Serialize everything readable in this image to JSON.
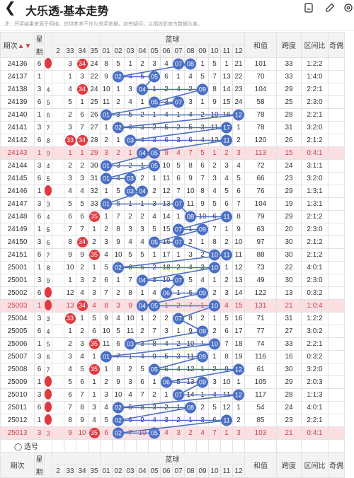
{
  "app": {
    "title": "大乐透-基本走势",
    "notice": "注：开奖结果来源于网络，仅供参考不作为兑奖依据，如有疑问，以福体彩官方数据为准。"
  },
  "header": {
    "period": "期次",
    "star_top": "星",
    "star_bottom": "期",
    "blue_title": "蓝球",
    "red_cols": [
      "2",
      "33",
      "34",
      "35"
    ],
    "blue_nums": [
      "01",
      "02",
      "03",
      "04",
      "05",
      "06",
      "07",
      "08",
      "09",
      "10",
      "11",
      "12"
    ],
    "sum": "和值",
    "span": "跨度",
    "ratio": "区间比",
    "odd": "奇偶"
  },
  "footer": {
    "pick_label": "选号",
    "period": "期次",
    "star_top": "星",
    "star_bottom": "期",
    "blue_title": "蓝球",
    "red_cols": [
      "2",
      "33",
      "34",
      "35"
    ],
    "blue_nums": [
      "01",
      "02",
      "03",
      "04",
      "05",
      "06",
      "07",
      "08",
      "09",
      "10",
      "11",
      "12"
    ],
    "sum": "和值",
    "span": "跨度",
    "ratio": "区间比",
    "odd": "奇偶"
  },
  "colors": {
    "red_ball": "#e0393e",
    "blue_ball": "#4a6fc4",
    "highlight_row": "#fbdfe2"
  },
  "rows": [
    {
      "period": "24136",
      "star": "6",
      "left": "2",
      "reds": [
        "3",
        "34",
        "24"
      ],
      "red_hits": [
        false,
        true,
        false
      ],
      "blues": [
        "8",
        "5",
        "1",
        "2",
        "3",
        "4",
        "07",
        "08",
        "1",
        "5",
        "1",
        "21"
      ],
      "hits": [
        7,
        8
      ],
      "sum": "101",
      "span": "33",
      "ratio": "1:2:2",
      "hl": false
    },
    {
      "period": "24137",
      "star": "1",
      "left": "",
      "reds": [
        "1",
        "3",
        "22"
      ],
      "red_hits": [
        false,
        false,
        false
      ],
      "blues": [
        "9",
        "02",
        "4",
        "5",
        "05",
        "6",
        "1",
        "4",
        "5",
        "7",
        "13",
        "22"
      ],
      "hits": [
        2,
        5
      ],
      "sum": "70",
      "span": "33",
      "ratio": "1:4:0",
      "hl": false
    },
    {
      "period": "24138",
      "star": "3",
      "left": "4",
      "reds": [
        "4",
        "34",
        "24"
      ],
      "red_hits": [
        false,
        true,
        false
      ],
      "blues": [
        "10",
        "1",
        "3",
        "04",
        "1",
        "2",
        "4",
        "2",
        "09",
        "8",
        "14",
        "23"
      ],
      "hits": [
        4,
        9
      ],
      "sum": "104",
      "span": "29",
      "ratio": "2:2:1",
      "hl": false
    },
    {
      "period": "24139",
      "star": "6",
      "left": "5",
      "reds": [
        "5",
        "1",
        "25"
      ],
      "red_hits": [
        false,
        false,
        false
      ],
      "blues": [
        "11",
        "2",
        "4",
        "1",
        "05",
        "3",
        "07",
        "3",
        "1",
        "9",
        "15",
        "24"
      ],
      "hits": [
        5,
        7
      ],
      "sum": "58",
      "span": "25",
      "ratio": "2:3:0",
      "hl": false
    },
    {
      "period": "24140",
      "star": "1",
      "left": "6",
      "reds": [
        "2",
        "6",
        "26"
      ],
      "red_hits": [
        false,
        false,
        false
      ],
      "blues": [
        "01",
        "3",
        "5",
        "2",
        "1",
        "4",
        "1",
        "4",
        "2",
        "10",
        "16",
        "12"
      ],
      "hits": [
        1,
        12
      ],
      "sum": "78",
      "span": "28",
      "ratio": "2:2:1",
      "hl": false
    },
    {
      "period": "24141",
      "star": "3",
      "left": "7",
      "reds": [
        "3",
        "7",
        "27"
      ],
      "red_hits": [
        false,
        false,
        false
      ],
      "blues": [
        "1",
        "02",
        "6",
        "3",
        "2",
        "5",
        "2",
        "5",
        "3",
        "11",
        "17",
        "1"
      ],
      "hits": [
        2,
        11
      ],
      "sum": "78",
      "span": "31",
      "ratio": "3:2:0",
      "hl": false
    },
    {
      "period": "24142",
      "star": "6",
      "left": "8",
      "reds": [
        "33",
        "34",
        "28"
      ],
      "red_hits": [
        true,
        true,
        false
      ],
      "blues": [
        "2",
        "1",
        "03",
        "4",
        "3",
        "6",
        "3",
        "6",
        "4",
        "12",
        "11",
        "2"
      ],
      "hits": [
        3,
        11
      ],
      "sum": "120",
      "span": "26",
      "ratio": "2:1:2",
      "hl": false
    },
    {
      "period": "24143",
      "star": "1",
      "left": "9",
      "reds": [
        "1",
        "1",
        "29"
      ],
      "red_hits": [
        false,
        false,
        false
      ],
      "blues": [
        "3",
        "2",
        "1",
        "04",
        "05",
        "9",
        "4",
        "7",
        "5",
        "1",
        "2",
        "3"
      ],
      "hits": [
        4,
        5
      ],
      "sum": "113",
      "span": "15",
      "ratio": "0:4:1",
      "hl": true
    },
    {
      "period": "24144",
      "star": "3",
      "left": "4",
      "reds": [
        "2",
        "2",
        "30"
      ],
      "red_hits": [
        false,
        false,
        false
      ],
      "blues": [
        "01",
        "3",
        "2",
        "1",
        "05",
        "10",
        "5",
        "8",
        "6",
        "2",
        "3",
        "4"
      ],
      "hits": [
        1,
        5
      ],
      "sum": "72",
      "span": "24",
      "ratio": "3:1:1",
      "hl": false
    },
    {
      "period": "24145",
      "star": "6",
      "left": "5",
      "reds": [
        "3",
        "3",
        "31"
      ],
      "red_hits": [
        false,
        false,
        false
      ],
      "blues": [
        "01",
        "4",
        "03",
        "2",
        "1",
        "11",
        "6",
        "9",
        "7",
        "3",
        "4",
        "5"
      ],
      "hits": [
        1,
        3
      ],
      "sum": "66",
      "span": "23",
      "ratio": "3:2:0",
      "hl": false
    },
    {
      "period": "24146",
      "star": "1",
      "left": "2",
      "reds": [
        "4",
        "4",
        "32"
      ],
      "red_hits": [
        false,
        false,
        false
      ],
      "blues": [
        "1",
        "5",
        "03",
        "04",
        "2",
        "12",
        "7",
        "10",
        "8",
        "4",
        "5",
        "6"
      ],
      "hits": [
        3,
        4
      ],
      "sum": "76",
      "span": "29",
      "ratio": "1:3:1",
      "hl": false
    },
    {
      "period": "24147",
      "star": "3",
      "left": "3",
      "reds": [
        "5",
        "5",
        "33"
      ],
      "red_hits": [
        false,
        false,
        false
      ],
      "blues": [
        "01",
        "6",
        "1",
        "1",
        "3",
        "13",
        "07",
        "11",
        "9",
        "5",
        "6",
        "7"
      ],
      "hits": [
        1,
        7
      ],
      "sum": "104",
      "span": "19",
      "ratio": "1:3:1",
      "hl": false
    },
    {
      "period": "24148",
      "star": "6",
      "left": "4",
      "reds": [
        "6",
        "6",
        "35"
      ],
      "red_hits": [
        false,
        false,
        true
      ],
      "blues": [
        "1",
        "7",
        "2",
        "2",
        "4",
        "14",
        "1",
        "08",
        "10",
        "6",
        "11",
        "8"
      ],
      "hits": [
        8,
        11
      ],
      "sum": "79",
      "span": "29",
      "ratio": "2:1:2",
      "hl": false
    },
    {
      "period": "24149",
      "star": "1",
      "left": "5",
      "reds": [
        "7",
        "7",
        "1"
      ],
      "red_hits": [
        false,
        false,
        false
      ],
      "blues": [
        "2",
        "8",
        "3",
        "3",
        "5",
        "15",
        "07",
        "1",
        "09",
        "7",
        "1",
        "9"
      ],
      "hits": [
        7,
        9
      ],
      "sum": "63",
      "span": "20",
      "ratio": "2:3:0",
      "hl": false
    },
    {
      "period": "24150",
      "star": "3",
      "left": "6",
      "reds": [
        "8",
        "34",
        "2"
      ],
      "red_hits": [
        false,
        true,
        false
      ],
      "blues": [
        "3",
        "9",
        "4",
        "4",
        "05",
        "16",
        "07",
        "2",
        "1",
        "8",
        "2",
        "10"
      ],
      "hits": [
        5,
        7
      ],
      "sum": "97",
      "span": "30",
      "ratio": "2:1:2",
      "hl": false
    },
    {
      "period": "24151",
      "star": "6",
      "left": "7",
      "reds": [
        "9",
        "9",
        "35"
      ],
      "red_hits": [
        false,
        false,
        true
      ],
      "blues": [
        "4",
        "10",
        "5",
        "5",
        "1",
        "17",
        "1",
        "3",
        "2",
        "10",
        "11",
        "11"
      ],
      "hits": [
        10,
        11
      ],
      "sum": "88",
      "span": "30",
      "ratio": "2:1:2",
      "hl": false
    },
    {
      "period": "25001",
      "star": "1",
      "left": "8",
      "reds": [
        "10",
        "2",
        "1"
      ],
      "red_hits": [
        false,
        false,
        false
      ],
      "blues": [
        "5",
        "02",
        "6",
        "6",
        "2",
        "18",
        "2",
        "4",
        "3",
        "10",
        "1",
        "12"
      ],
      "hits": [
        2,
        10
      ],
      "sum": "73",
      "span": "22",
      "ratio": "4:0:1",
      "hl": false
    },
    {
      "period": "25001",
      "star": "3",
      "left": "9",
      "reds": [
        "1",
        "3",
        "2"
      ],
      "red_hits": [
        false,
        false,
        false
      ],
      "blues": [
        "6",
        "1",
        "7",
        "04",
        "3",
        "19",
        "07",
        "5",
        "4",
        "1",
        "2",
        "13"
      ],
      "hits": [
        4,
        7
      ],
      "sum": "49",
      "span": "30",
      "ratio": "2:3:0",
      "hl": false
    },
    {
      "period": "25002",
      "star": "6",
      "left": "2",
      "reds": [
        "12",
        "4",
        "3"
      ],
      "red_hits": [
        false,
        false,
        false
      ],
      "blues": [
        "7",
        "2",
        "8",
        "1",
        "4",
        "06",
        "1",
        "6",
        "09",
        "2",
        "3",
        "14"
      ],
      "hits": [
        6,
        9
      ],
      "sum": "122",
      "span": "13",
      "ratio": "0:3:2",
      "hl": false
    },
    {
      "period": "25003",
      "star": "1",
      "left": "2",
      "reds": [
        "13",
        "34",
        "4"
      ],
      "red_hits": [
        false,
        true,
        false
      ],
      "blues": [
        "8",
        "3",
        "9",
        "04",
        "05",
        "1",
        "2",
        "7",
        "1",
        "10",
        "4",
        "15"
      ],
      "hits": [
        4,
        5,
        10
      ],
      "sum": "131",
      "span": "21",
      "ratio": "1:0:4",
      "hl": true
    },
    {
      "period": "25004",
      "star": "3",
      "left": "3",
      "reds": [
        "33",
        "1",
        "5"
      ],
      "red_hits": [
        true,
        false,
        false
      ],
      "blues": [
        "9",
        "4",
        "10",
        "1",
        "2",
        "2",
        "07",
        "8",
        "2",
        "1",
        "5",
        "16"
      ],
      "hits": [
        7
      ],
      "sum": "71",
      "span": "31",
      "ratio": "1:2:2",
      "hl": false
    },
    {
      "period": "25005",
      "star": "6",
      "left": "4",
      "reds": [
        "1",
        "2",
        "6"
      ],
      "red_hits": [
        false,
        false,
        false
      ],
      "blues": [
        "10",
        "5",
        "11",
        "2",
        "7",
        "3",
        "1",
        "9",
        "09",
        "2",
        "6",
        "17"
      ],
      "hits": [
        9
      ],
      "sum": "77",
      "span": "27",
      "ratio": "3:0:2",
      "hl": false
    },
    {
      "period": "25006",
      "star": "1",
      "left": "5",
      "reds": [
        "2",
        "3",
        "35"
      ],
      "red_hits": [
        false,
        false,
        true
      ],
      "blues": [
        "11",
        "6",
        "03",
        "3",
        "8",
        "4",
        "2",
        "10",
        "1",
        "10",
        "7",
        "18"
      ],
      "hits": [
        3,
        10
      ],
      "sum": "74",
      "span": "33",
      "ratio": "2:2:1",
      "hl": false
    },
    {
      "period": "25007",
      "star": "3",
      "left": "6",
      "reds": [
        "3",
        "4",
        "1"
      ],
      "red_hits": [
        false,
        false,
        false
      ],
      "blues": [
        "01",
        "7",
        "1",
        "4",
        "9",
        "5",
        "3",
        "11",
        "09",
        "1",
        "8",
        "19"
      ],
      "hits": [
        1,
        9
      ],
      "sum": "116",
      "span": "16",
      "ratio": "0:3:2",
      "hl": false
    },
    {
      "period": "25008",
      "star": "6",
      "left": "7",
      "reds": [
        "4",
        "5",
        "35"
      ],
      "red_hits": [
        false,
        false,
        true
      ],
      "blues": [
        "1",
        "8",
        "2",
        "5",
        "05",
        "6",
        "4",
        "12",
        "1",
        "2",
        "9",
        "12"
      ],
      "hits": [
        5,
        12
      ],
      "sum": "61",
      "span": "30",
      "ratio": "3:2:0",
      "hl": false
    },
    {
      "period": "25009",
      "star": "1",
      "left": "2",
      "reds": [
        "5",
        "6",
        "1"
      ],
      "red_hits": [
        false,
        false,
        false
      ],
      "blues": [
        "2",
        "9",
        "3",
        "6",
        "1",
        "06",
        "5",
        "13",
        "09",
        "3",
        "10",
        "1"
      ],
      "hits": [
        6,
        9
      ],
      "sum": "105",
      "span": "29",
      "ratio": "2:0:3",
      "hl": false
    },
    {
      "period": "25010",
      "star": "3",
      "left": "2",
      "reds": [
        "6",
        "7",
        "1"
      ],
      "red_hits": [
        false,
        false,
        false
      ],
      "blues": [
        "3",
        "10",
        "4",
        "7",
        "2",
        "1",
        "07",
        "14",
        "1",
        "4",
        "11",
        "12"
      ],
      "hits": [
        7,
        12
      ],
      "sum": "117",
      "span": "28",
      "ratio": "1:1:3",
      "hl": false
    },
    {
      "period": "25011",
      "star": "6",
      "left": "2",
      "reds": [
        "7",
        "8",
        "3"
      ],
      "red_hits": [
        false,
        false,
        false
      ],
      "blues": [
        "4",
        "02",
        "5",
        "8",
        "3",
        "2",
        "1",
        "08",
        "2",
        "5",
        "12",
        "1"
      ],
      "hits": [
        2,
        8
      ],
      "sum": "54",
      "span": "24",
      "ratio": "4:0:1",
      "hl": false
    },
    {
      "period": "25012",
      "star": "1",
      "left": "2",
      "reds": [
        "8",
        "9",
        "4"
      ],
      "red_hits": [
        false,
        false,
        false
      ],
      "blues": [
        "5",
        "02",
        "6",
        "9",
        "4",
        "3",
        "2",
        "1",
        "3",
        "6",
        "11",
        "2"
      ],
      "hits": [
        2,
        11
      ],
      "sum": "85",
      "span": "23",
      "ratio": "2:2:1",
      "hl": false
    },
    {
      "period": "25013",
      "star": "3",
      "left": "3",
      "reds": [
        "9",
        "10",
        "35"
      ],
      "red_hits": [
        false,
        false,
        true
      ],
      "blues": [
        "6",
        "02",
        "7",
        "10",
        "05",
        "4",
        "3",
        "2",
        "4",
        "7",
        "1",
        "3"
      ],
      "hits": [
        2,
        5
      ],
      "sum": "103",
      "span": "21",
      "ratio": "0:4:1",
      "hl": true
    }
  ]
}
